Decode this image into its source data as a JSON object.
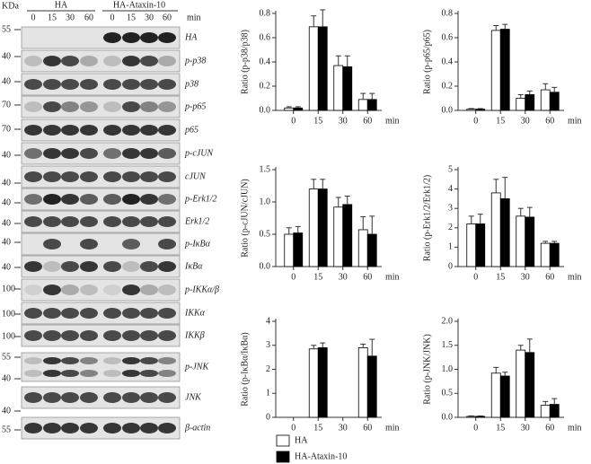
{
  "blot": {
    "kda": "KDa",
    "groups": [
      "HA",
      "HA-Ataxin-10"
    ],
    "times": [
      "0",
      "15",
      "30",
      "60",
      "0",
      "15",
      "30",
      "60"
    ],
    "time_unit": "min",
    "markers": [
      55,
      40,
      40,
      70,
      70,
      40,
      40,
      40,
      40,
      40,
      40,
      100,
      100,
      100,
      55,
      40,
      40,
      55
    ],
    "rows": [
      {
        "label": "HA"
      },
      {
        "label": "p-p38"
      },
      {
        "label": "p38"
      },
      {
        "label": "p-p65"
      },
      {
        "label": "p65"
      },
      {
        "label": "p-cJUN"
      },
      {
        "label": "cJUN"
      },
      {
        "label": "p-Erk1/2"
      },
      {
        "label": "Erk1/2"
      },
      {
        "label": "p-IκBα"
      },
      {
        "label": "IκBα"
      },
      {
        "label": "p-IKKα/β"
      },
      {
        "label": "IKKα"
      },
      {
        "label": "IKKβ"
      },
      {
        "label": "p-JNK"
      },
      {
        "label": "JNK"
      },
      {
        "label": "β-actin"
      }
    ]
  },
  "legend": [
    {
      "name": "HA",
      "color": "#ffffff"
    },
    {
      "name": "HA-Ataxin-10",
      "color": "#000000"
    }
  ],
  "chart_data": [
    {
      "type": "bar",
      "y_label": "Ratio (p-p38/p38)",
      "x_label": "min",
      "categories": [
        "0",
        "15",
        "30",
        "60"
      ],
      "ylim": [
        0,
        0.8
      ],
      "yticks": [
        {
          "value": 0,
          "label": "0.0"
        },
        {
          "value": 0.2,
          "label": "0.2"
        },
        {
          "value": 0.4,
          "label": "0.4"
        },
        {
          "value": 0.6,
          "label": "0.6"
        },
        {
          "value": 0.8,
          "label": "0.8"
        }
      ],
      "series": [
        {
          "values": [
            0.02,
            0.69,
            0.37,
            0.09
          ],
          "errors": [
            0.01,
            0.09,
            0.08,
            0.05
          ]
        },
        {
          "values": [
            0.02,
            0.69,
            0.36,
            0.09
          ],
          "errors": [
            0.01,
            0.14,
            0.09,
            0.05
          ]
        }
      ]
    },
    {
      "type": "bar",
      "y_label": "Ratio (p-p65/p65)",
      "x_label": "min",
      "categories": [
        "0",
        "15",
        "30",
        "60"
      ],
      "ylim": [
        0,
        0.8
      ],
      "yticks": [
        {
          "value": 0,
          "label": "0.0"
        },
        {
          "value": 0.2,
          "label": "0.2"
        },
        {
          "value": 0.4,
          "label": "0.4"
        },
        {
          "value": 0.6,
          "label": "0.6"
        },
        {
          "value": 0.8,
          "label": "0.8"
        }
      ],
      "series": [
        {
          "values": [
            0.01,
            0.66,
            0.1,
            0.17
          ],
          "errors": [
            0.005,
            0.04,
            0.03,
            0.05
          ]
        },
        {
          "values": [
            0.01,
            0.67,
            0.13,
            0.15
          ],
          "errors": [
            0.005,
            0.04,
            0.03,
            0.04
          ]
        }
      ]
    },
    {
      "type": "bar",
      "y_label": "Ratio (p-cJUN/cJUN)",
      "x_label": "min",
      "categories": [
        "0",
        "15",
        "30",
        "60"
      ],
      "ylim": [
        0,
        1.5
      ],
      "yticks": [
        {
          "value": 0,
          "label": "0.0"
        },
        {
          "value": 0.5,
          "label": "0.5"
        },
        {
          "value": 1,
          "label": "1.0"
        },
        {
          "value": 1.5,
          "label": "1.5"
        }
      ],
      "series": [
        {
          "values": [
            0.5,
            1.2,
            0.92,
            0.57
          ],
          "errors": [
            0.1,
            0.15,
            0.15,
            0.2
          ]
        },
        {
          "values": [
            0.52,
            1.2,
            0.96,
            0.5
          ],
          "errors": [
            0.1,
            0.15,
            0.13,
            0.28
          ]
        }
      ]
    },
    {
      "type": "bar",
      "y_label": "Ratio (p-Erk1/2/Erk1/2)",
      "x_label": "min",
      "categories": [
        "0",
        "15",
        "30",
        "60"
      ],
      "ylim": [
        0,
        5
      ],
      "yticks": [
        0,
        1,
        2,
        3,
        4,
        5
      ],
      "series": [
        {
          "values": [
            2.2,
            3.8,
            2.6,
            1.2
          ],
          "errors": [
            0.4,
            0.7,
            0.4,
            0.1
          ]
        },
        {
          "values": [
            2.2,
            3.5,
            2.55,
            1.2
          ],
          "errors": [
            0.5,
            1.1,
            0.5,
            0.1
          ]
        }
      ]
    },
    {
      "type": "bar",
      "y_label": "Ratio (p-IκBα/IκBα)",
      "x_label": "min",
      "categories": [
        "0",
        "15",
        "30",
        "60"
      ],
      "ylim": [
        0,
        4
      ],
      "yticks": [
        0,
        1,
        2,
        3,
        4
      ],
      "series": [
        {
          "values": [
            0,
            2.85,
            0,
            2.9
          ],
          "errors": [
            0,
            0.15,
            0,
            0.15
          ]
        },
        {
          "values": [
            0,
            2.9,
            0,
            2.55
          ],
          "errors": [
            0,
            0.2,
            0,
            0.7
          ]
        }
      ]
    },
    {
      "type": "bar",
      "y_label": "Ratio (p-JNK/JNK)",
      "x_label": "min",
      "categories": [
        "0",
        "15",
        "30",
        "60"
      ],
      "ylim": [
        0,
        2
      ],
      "yticks": [
        {
          "value": 0,
          "label": "0.0"
        },
        {
          "value": 0.5,
          "label": "0.5"
        },
        {
          "value": 1,
          "label": "1.0"
        },
        {
          "value": 1.5,
          "label": "1.5"
        },
        {
          "value": 2,
          "label": "2.0"
        }
      ],
      "series": [
        {
          "values": [
            0.02,
            0.92,
            1.4,
            0.25
          ],
          "errors": [
            0.01,
            0.12,
            0.1,
            0.08
          ]
        },
        {
          "values": [
            0.02,
            0.86,
            1.35,
            0.27
          ],
          "errors": [
            0.01,
            0.08,
            0.28,
            0.12
          ]
        }
      ]
    }
  ]
}
